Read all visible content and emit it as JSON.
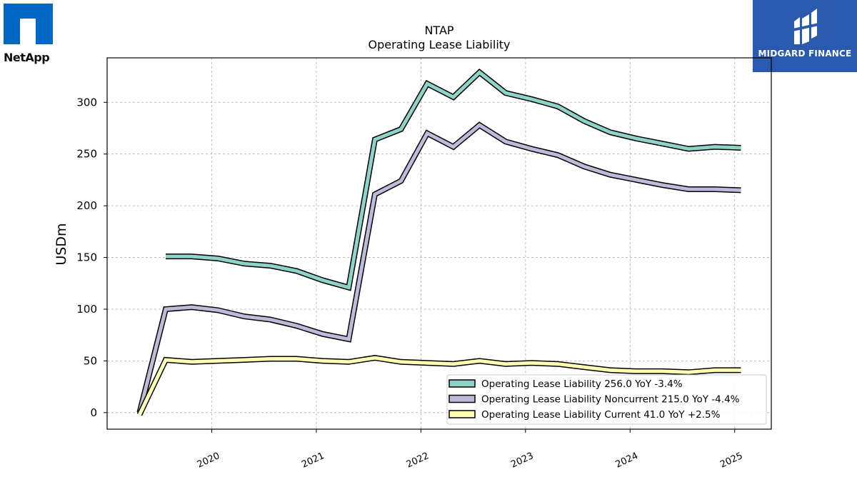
{
  "logos": {
    "left_text": "NetApp",
    "right_text": "MIDGARD FINANCE",
    "left_color": "#0067c5",
    "right_color": "#2a5aad"
  },
  "chart_data": {
    "type": "line",
    "title": "NTAP",
    "subtitle": "Operating Lease Liability",
    "xlabel": "",
    "ylabel": "USDm",
    "x_ticks": [
      "2020",
      "2021",
      "2022",
      "2023",
      "2024",
      "2025"
    ],
    "y_ticks": [
      0,
      50,
      100,
      150,
      200,
      250,
      300
    ],
    "xlim": [
      2019.0,
      2025.35
    ],
    "ylim": [
      -16,
      343
    ],
    "grid": true,
    "legend_position": "lower-right",
    "series": [
      {
        "name": "Operating Lease Liability  256.0 YoY -3.4%",
        "color": "#8dd3c7",
        "x": [
          2019.56,
          2019.81,
          2020.06,
          2020.31,
          2020.56,
          2020.81,
          2021.06,
          2021.31,
          2021.56,
          2021.81,
          2022.06,
          2022.31,
          2022.56,
          2022.81,
          2023.06,
          2023.31,
          2023.56,
          2023.81,
          2024.06,
          2024.31,
          2024.56,
          2024.81,
          2025.06
        ],
        "values": [
          151,
          151,
          149,
          144,
          142,
          137,
          128,
          121,
          264,
          274,
          318,
          305,
          329,
          309,
          303,
          296,
          282,
          271,
          265,
          260,
          255,
          257,
          256
        ]
      },
      {
        "name": "Operating Lease Liability Noncurrent  215.0 YoY -4.4%",
        "color": "#bebada",
        "x": [
          2019.31,
          2019.56,
          2019.81,
          2020.06,
          2020.31,
          2020.56,
          2020.81,
          2021.06,
          2021.31,
          2021.56,
          2021.81,
          2022.06,
          2022.31,
          2022.56,
          2022.81,
          2023.06,
          2023.31,
          2023.56,
          2023.81,
          2024.06,
          2024.31,
          2024.56,
          2024.81,
          2025.06
        ],
        "values": [
          0,
          100,
          102,
          99,
          93,
          90,
          84,
          76,
          71,
          211,
          224,
          270,
          257,
          278,
          262,
          255,
          249,
          238,
          230,
          225,
          220,
          216,
          216,
          215
        ]
      },
      {
        "name": "Operating Lease Liability Current  41.0 YoY +2.5%",
        "color": "#ffffb3",
        "x": [
          2019.31,
          2019.56,
          2019.81,
          2020.06,
          2020.31,
          2020.56,
          2020.81,
          2021.06,
          2021.31,
          2021.56,
          2021.81,
          2022.06,
          2022.31,
          2022.56,
          2022.81,
          2023.06,
          2023.31,
          2023.56,
          2023.81,
          2024.06,
          2024.31,
          2024.56,
          2024.81,
          2025.06
        ],
        "values": [
          -2,
          51,
          49,
          50,
          51,
          52,
          52,
          50,
          49,
          53,
          49,
          48,
          47,
          50,
          47,
          48,
          47,
          44,
          41,
          40,
          40,
          39,
          41,
          41
        ]
      }
    ]
  }
}
